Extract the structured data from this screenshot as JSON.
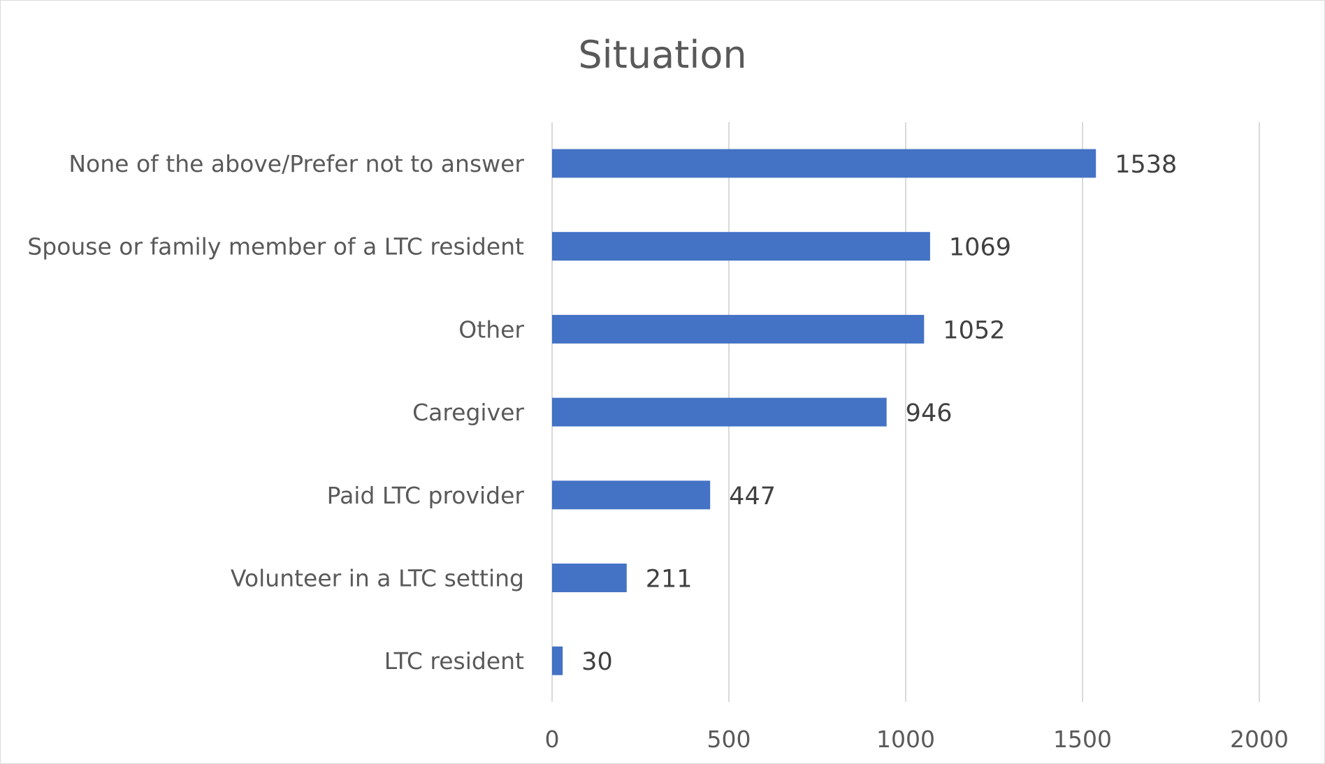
{
  "chart_data": {
    "type": "bar",
    "orientation": "horizontal",
    "title": "Situation",
    "xlabel": "",
    "ylabel": "",
    "categories": [
      "None of the above/Prefer not to answer",
      "Spouse or family member of a LTC resident",
      "Other",
      "Caregiver",
      "Paid LTC provider",
      "Volunteer in a LTC setting",
      "LTC resident"
    ],
    "values": [
      1538,
      1069,
      1052,
      946,
      447,
      211,
      30
    ],
    "xlim": [
      0,
      2000
    ],
    "ticks": [
      "0",
      "500",
      "1000",
      "1500",
      "2000"
    ],
    "data_labels": [
      "1538",
      "1069",
      "1052",
      "946",
      "447",
      "211",
      "30"
    ],
    "grid": "vertical",
    "legend": "none",
    "bar_color": "#4472c4",
    "grid_color": "#d9d9d9"
  }
}
